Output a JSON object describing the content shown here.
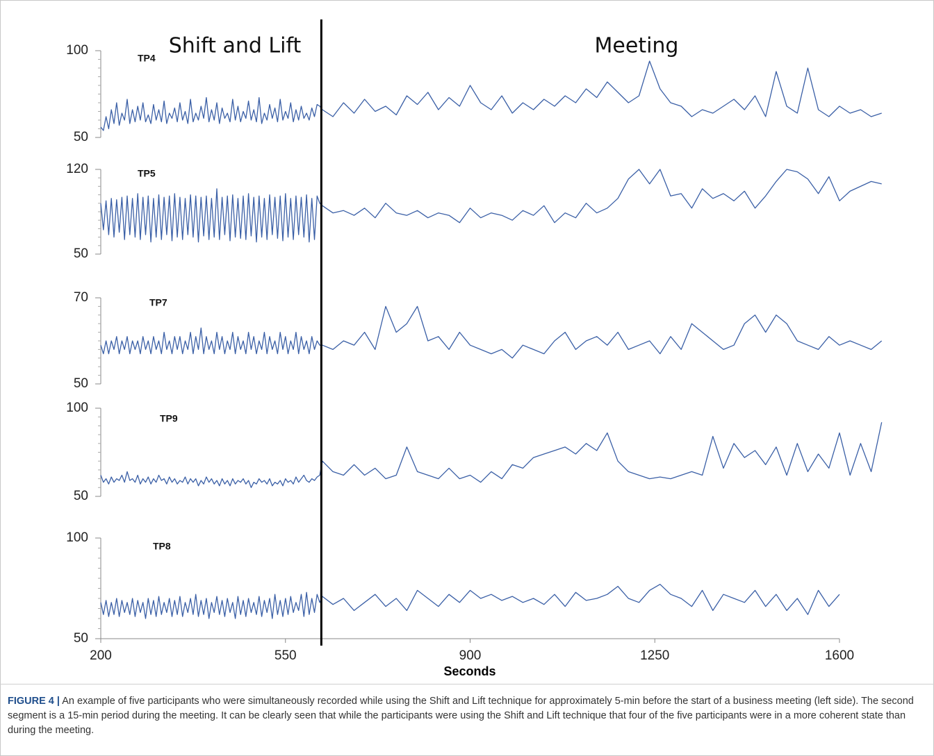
{
  "chart_data": {
    "type": "line",
    "annotations": [
      "Shift and Lift",
      "Meeting"
    ],
    "xlabel": "Seconds",
    "caption_label": "FIGURE 4 |",
    "caption": "An example of five participants who were simultaneously recorded while using the Shift and Lift technique for approximately 5-min before the start of a business meeting (left side). The second segment is a 15-min period during the meeting. It can be clearly seen that while the participants were using the Shift and Lift technique that four of the five participants were in a more coherent state than during the meeting.",
    "phase_boundary_x": 618,
    "xlim": [
      200,
      1600
    ],
    "xticks": [
      200,
      550,
      900,
      1250,
      1600
    ],
    "x": [
      200,
      205,
      210,
      215,
      220,
      225,
      230,
      235,
      240,
      245,
      250,
      255,
      260,
      265,
      270,
      275,
      280,
      285,
      290,
      295,
      300,
      305,
      310,
      315,
      320,
      325,
      330,
      335,
      340,
      345,
      350,
      355,
      360,
      365,
      370,
      375,
      380,
      385,
      390,
      395,
      400,
      405,
      410,
      415,
      420,
      425,
      430,
      435,
      440,
      445,
      450,
      455,
      460,
      465,
      470,
      475,
      480,
      485,
      490,
      495,
      500,
      505,
      510,
      515,
      520,
      525,
      530,
      535,
      540,
      545,
      550,
      555,
      560,
      565,
      570,
      575,
      580,
      585,
      590,
      595,
      600,
      605,
      610,
      615,
      620,
      640,
      660,
      680,
      700,
      720,
      740,
      760,
      780,
      800,
      820,
      840,
      860,
      880,
      900,
      920,
      940,
      960,
      980,
      1000,
      1020,
      1040,
      1060,
      1080,
      1100,
      1120,
      1140,
      1160,
      1180,
      1200,
      1220,
      1240,
      1260,
      1280,
      1300,
      1320,
      1340,
      1360,
      1380,
      1400,
      1420,
      1440,
      1460,
      1480,
      1500,
      1520,
      1540,
      1560,
      1580,
      1600,
      1620,
      1640,
      1660,
      1680
    ],
    "series": [
      {
        "name": "TP4",
        "color": "#3a5fa6",
        "ylim": [
          50,
          100
        ],
        "yticks": [
          50,
          100
        ],
        "values": [
          56,
          54,
          62,
          55,
          66,
          58,
          70,
          57,
          64,
          60,
          72,
          58,
          66,
          59,
          68,
          60,
          70,
          59,
          63,
          58,
          69,
          60,
          66,
          59,
          71,
          58,
          64,
          61,
          67,
          59,
          70,
          60,
          65,
          58,
          72,
          59,
          64,
          60,
          68,
          61,
          73,
          59,
          66,
          60,
          70,
          58,
          67,
          61,
          64,
          59,
          72,
          60,
          68,
          59,
          65,
          61,
          71,
          60,
          66,
          59,
          73,
          58,
          64,
          60,
          69,
          61,
          67,
          59,
          72,
          60,
          65,
          61,
          70,
          59,
          66,
          60,
          68,
          61,
          64,
          60,
          67,
          62,
          69,
          68,
          66,
          62,
          70,
          64,
          72,
          65,
          68,
          63,
          74,
          69,
          76,
          66,
          73,
          68,
          80,
          70,
          66,
          74,
          64,
          70,
          66,
          72,
          68,
          74,
          70,
          78,
          73,
          82,
          76,
          70,
          74,
          94,
          78,
          70,
          68,
          62,
          66,
          64,
          68,
          72,
          66,
          74,
          62,
          88,
          68,
          64,
          90,
          66,
          62,
          68,
          64,
          66,
          62,
          64
        ]
      },
      {
        "name": "TP5",
        "color": "#3a5fa6",
        "ylim": [
          50,
          120
        ],
        "yticks": [
          50,
          120
        ],
        "values": [
          92,
          70,
          94,
          66,
          96,
          64,
          95,
          68,
          97,
          62,
          98,
          66,
          96,
          64,
          100,
          62,
          97,
          66,
          98,
          60,
          96,
          64,
          99,
          62,
          97,
          66,
          98,
          61,
          100,
          64,
          97,
          62,
          96,
          66,
          99,
          64,
          98,
          60,
          97,
          65,
          98,
          62,
          96,
          64,
          104,
          62,
          97,
          66,
          98,
          61,
          99,
          64,
          96,
          63,
          98,
          62,
          100,
          65,
          97,
          60,
          98,
          64,
          96,
          62,
          99,
          66,
          97,
          63,
          98,
          61,
          100,
          64,
          96,
          62,
          98,
          66,
          97,
          64,
          99,
          60,
          96,
          62,
          98,
          92,
          90,
          84,
          86,
          82,
          88,
          80,
          92,
          84,
          82,
          86,
          80,
          84,
          82,
          76,
          88,
          80,
          84,
          82,
          78,
          86,
          82,
          90,
          76,
          84,
          80,
          92,
          84,
          88,
          96,
          112,
          120,
          108,
          120,
          98,
          100,
          88,
          104,
          96,
          100,
          94,
          102,
          88,
          98,
          110,
          120,
          118,
          112,
          100,
          114,
          94,
          102,
          106,
          110,
          108
        ]
      },
      {
        "name": "TP7",
        "color": "#3a5fa6",
        "ylim": [
          50,
          70
        ],
        "yticks": [
          50,
          70
        ],
        "values": [
          59,
          57,
          60,
          57,
          60,
          58,
          61,
          57,
          60,
          58,
          61,
          57,
          60,
          58,
          60,
          57,
          61,
          58,
          60,
          57,
          61,
          58,
          60,
          57,
          62,
          58,
          60,
          57,
          61,
          58,
          61,
          57,
          60,
          58,
          62,
          57,
          61,
          58,
          63,
          57,
          61,
          58,
          60,
          57,
          62,
          58,
          61,
          57,
          60,
          58,
          62,
          57,
          61,
          58,
          60,
          57,
          62,
          58,
          61,
          57,
          60,
          58,
          62,
          57,
          61,
          58,
          60,
          57,
          62,
          58,
          61,
          57,
          60,
          58,
          62,
          57,
          61,
          58,
          60,
          57,
          61,
          58,
          60,
          59,
          59,
          58,
          60,
          59,
          62,
          58,
          68,
          62,
          64,
          68,
          60,
          61,
          58,
          62,
          59,
          58,
          57,
          58,
          56,
          59,
          58,
          57,
          60,
          62,
          58,
          60,
          61,
          59,
          62,
          58,
          59,
          60,
          57,
          61,
          58,
          64,
          62,
          60,
          58,
          59,
          64,
          66,
          62,
          66,
          64,
          60,
          59,
          58,
          61,
          59,
          60,
          59,
          58,
          60
        ]
      },
      {
        "name": "TP9",
        "color": "#3a5fa6",
        "ylim": [
          50,
          100
        ],
        "yticks": [
          50,
          100
        ],
        "values": [
          62,
          58,
          60,
          57,
          61,
          58,
          60,
          59,
          62,
          58,
          64,
          59,
          60,
          58,
          62,
          57,
          60,
          58,
          61,
          57,
          60,
          58,
          62,
          59,
          60,
          57,
          61,
          58,
          60,
          57,
          59,
          58,
          61,
          57,
          60,
          58,
          60,
          56,
          59,
          57,
          61,
          58,
          60,
          57,
          59,
          56,
          60,
          57,
          59,
          56,
          60,
          57,
          59,
          58,
          60,
          57,
          59,
          55,
          58,
          57,
          60,
          58,
          59,
          57,
          60,
          56,
          58,
          57,
          59,
          56,
          60,
          58,
          59,
          57,
          61,
          58,
          60,
          62,
          59,
          58,
          60,
          59,
          61,
          62,
          70,
          64,
          62,
          68,
          62,
          66,
          60,
          62,
          78,
          64,
          62,
          60,
          66,
          60,
          62,
          58,
          64,
          60,
          68,
          66,
          72,
          74,
          76,
          78,
          74,
          80,
          76,
          86,
          70,
          64,
          62,
          60,
          61,
          60,
          62,
          64,
          62,
          84,
          66,
          80,
          72,
          76,
          68,
          78,
          62,
          80,
          64,
          74,
          66,
          86,
          62,
          80,
          64,
          92
        ]
      },
      {
        "name": "TP8",
        "color": "#3a5fa6",
        "ylim": [
          50,
          100
        ],
        "yticks": [
          50,
          100
        ],
        "values": [
          68,
          62,
          69,
          61,
          68,
          62,
          70,
          61,
          69,
          63,
          68,
          62,
          70,
          61,
          69,
          63,
          68,
          60,
          70,
          62,
          69,
          61,
          71,
          62,
          68,
          63,
          70,
          61,
          69,
          62,
          71,
          61,
          68,
          63,
          70,
          62,
          72,
          61,
          69,
          62,
          70,
          60,
          68,
          63,
          71,
          62,
          69,
          61,
          70,
          63,
          68,
          60,
          71,
          62,
          69,
          61,
          70,
          63,
          68,
          62,
          71,
          61,
          69,
          63,
          70,
          60,
          72,
          62,
          69,
          61,
          70,
          62,
          71,
          63,
          68,
          64,
          72,
          61,
          73,
          62,
          70,
          63,
          72,
          68,
          71,
          67,
          70,
          64,
          68,
          72,
          66,
          70,
          64,
          74,
          70,
          66,
          72,
          68,
          74,
          70,
          72,
          69,
          71,
          68,
          70,
          67,
          72,
          66,
          73,
          69,
          70,
          72,
          76,
          70,
          68,
          74,
          77,
          72,
          70,
          66,
          74,
          64,
          72,
          70,
          68,
          74,
          66,
          72,
          64,
          70,
          62,
          74,
          66,
          72,
          null,
          null,
          null,
          null
        ]
      }
    ]
  }
}
